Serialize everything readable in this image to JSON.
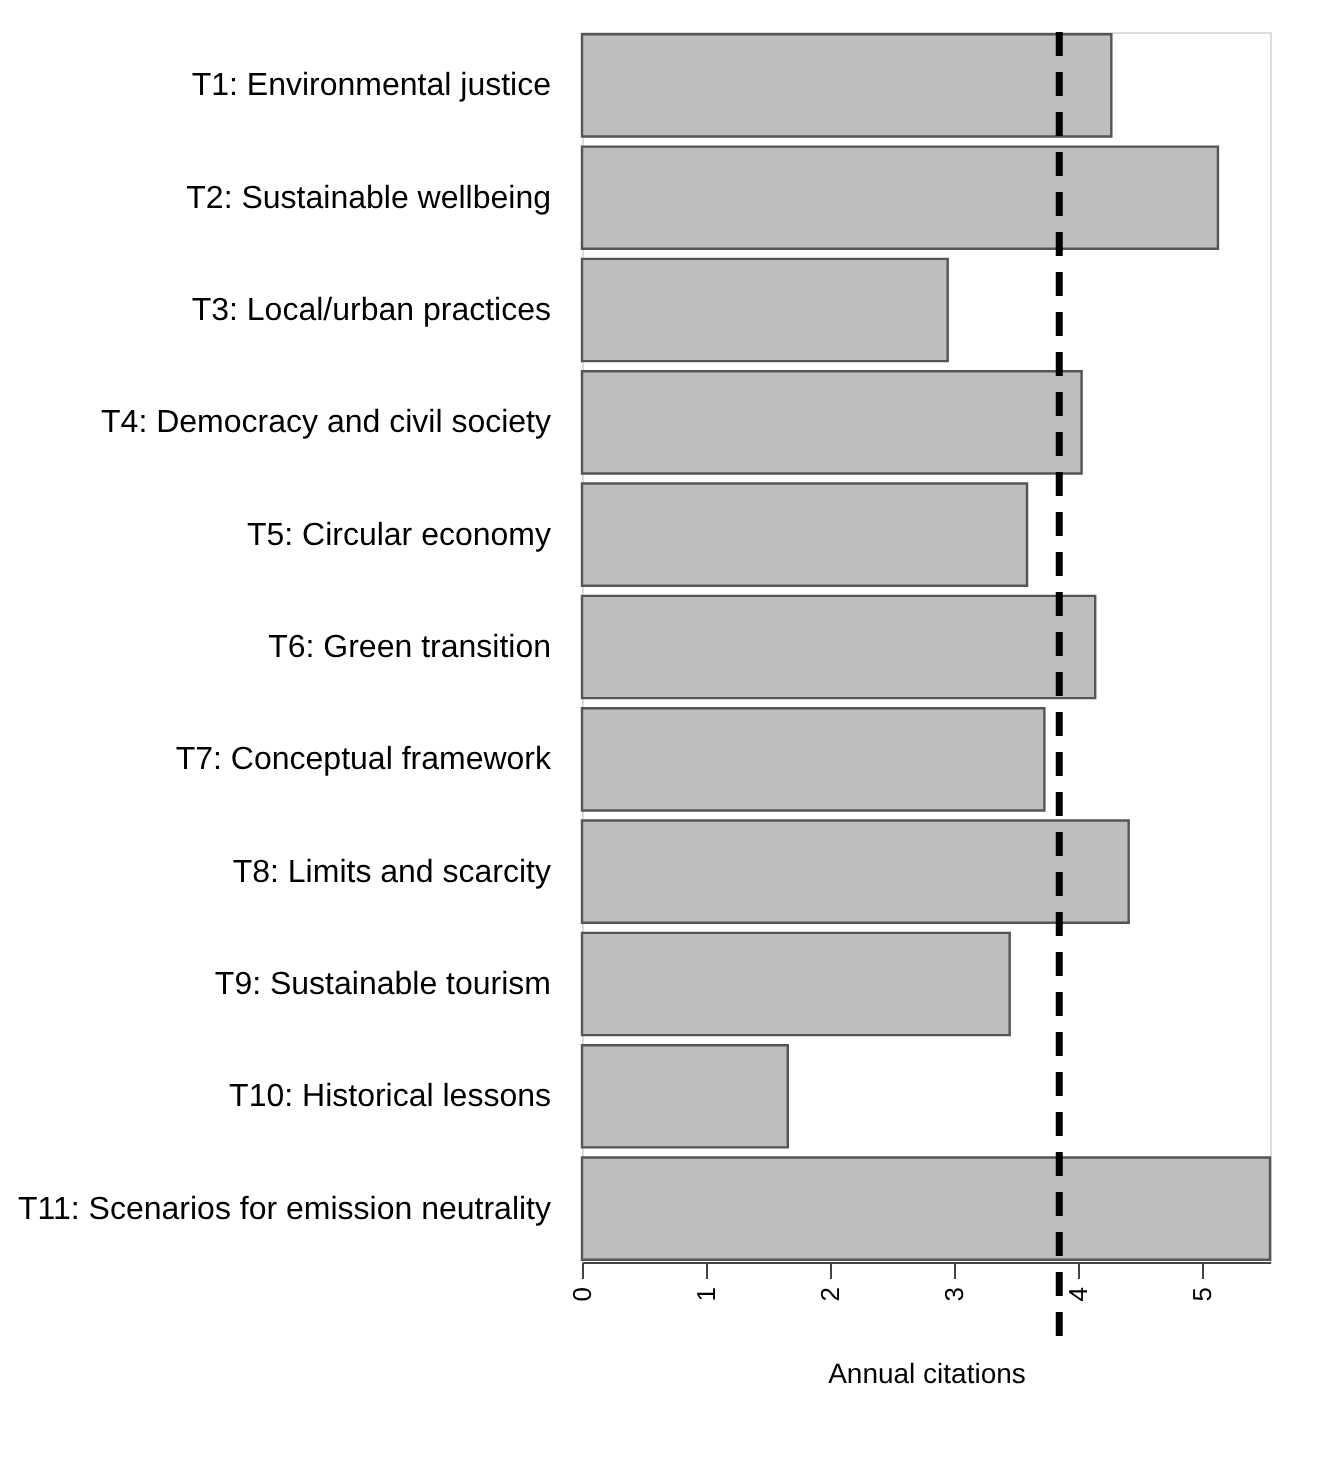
{
  "chart_data": {
    "type": "bar",
    "orientation": "horizontal",
    "xlabel": "Annual citations",
    "categories": [
      "T1: Environmental justice",
      "T2: Sustainable wellbeing",
      "T3: Local/urban practices",
      "T4: Democracy and civil society",
      "T5: Circular economy",
      "T6: Green transition",
      "T7: Conceptual framework",
      "T8: Limits and scarcity",
      "T9: Sustainable tourism",
      "T10: Historical lessons",
      "T11: Scenarios for emission neutrality"
    ],
    "values": [
      4.27,
      5.13,
      2.95,
      4.03,
      3.59,
      4.14,
      3.73,
      4.41,
      3.45,
      1.66,
      5.55
    ],
    "color": "#bebebe",
    "xlim": [
      0,
      5.55
    ],
    "xticks": [
      0,
      1,
      2,
      3,
      4,
      5
    ],
    "grid": false,
    "ref_lines": [
      {
        "axis": "x",
        "value": 3.85,
        "color": "#000000",
        "line_style": "dashed"
      }
    ]
  }
}
